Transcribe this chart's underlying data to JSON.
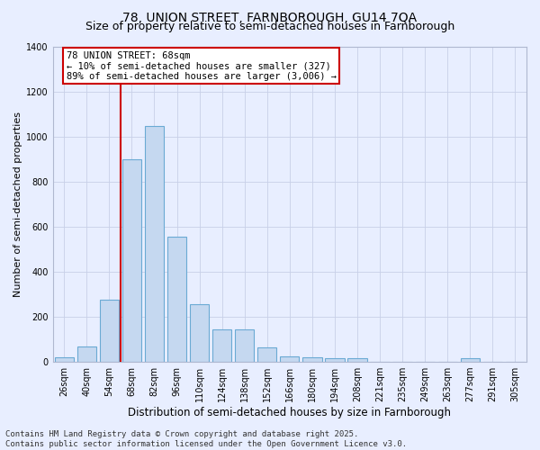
{
  "title": "78, UNION STREET, FARNBOROUGH, GU14 7QA",
  "subtitle": "Size of property relative to semi-detached houses in Farnborough",
  "xlabel": "Distribution of semi-detached houses by size in Farnborough",
  "ylabel": "Number of semi-detached properties",
  "categories": [
    "26sqm",
    "40sqm",
    "54sqm",
    "68sqm",
    "82sqm",
    "96sqm",
    "110sqm",
    "124sqm",
    "138sqm",
    "152sqm",
    "166sqm",
    "180sqm",
    "194sqm",
    "208sqm",
    "221sqm",
    "235sqm",
    "249sqm",
    "263sqm",
    "277sqm",
    "291sqm",
    "305sqm"
  ],
  "values": [
    20,
    68,
    275,
    900,
    1045,
    555,
    255,
    145,
    145,
    65,
    25,
    22,
    15,
    15,
    0,
    0,
    0,
    0,
    15,
    0,
    0
  ],
  "bar_color": "#c5d8f0",
  "bar_edge_color": "#6aaad4",
  "red_line_index": 3,
  "annotation_text": "78 UNION STREET: 68sqm\n← 10% of semi-detached houses are smaller (327)\n89% of semi-detached houses are larger (3,006) →",
  "annotation_box_facecolor": "#ffffff",
  "annotation_box_edgecolor": "#cc0000",
  "ylim": [
    0,
    1400
  ],
  "yticks": [
    0,
    200,
    400,
    600,
    800,
    1000,
    1200,
    1400
  ],
  "background_color": "#e8eeff",
  "grid_color": "#c8d0e8",
  "title_fontsize": 10,
  "subtitle_fontsize": 9,
  "xlabel_fontsize": 8.5,
  "ylabel_fontsize": 8,
  "tick_fontsize": 7,
  "annotation_fontsize": 7.5,
  "footer_fontsize": 6.5,
  "footer": "Contains HM Land Registry data © Crown copyright and database right 2025.\nContains public sector information licensed under the Open Government Licence v3.0."
}
